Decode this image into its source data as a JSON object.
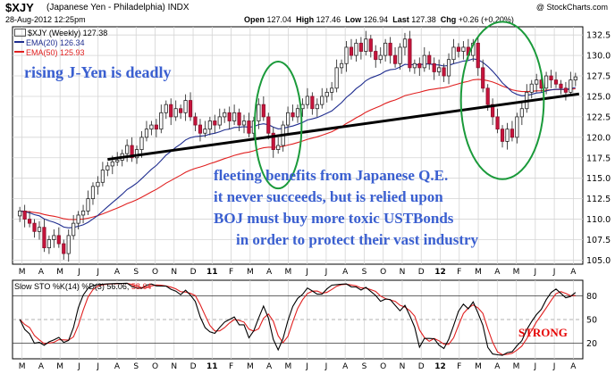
{
  "header": {
    "symbol": "$XJY",
    "name": "(Japanese Yen - Philadelphia)",
    "exchange": "INDX",
    "copyright": "@ StockCharts.com",
    "date": "28-Aug-2012 12:25pm",
    "open_label": "Open",
    "open": "127.04",
    "high_label": "High",
    "high": "127.46",
    "low_label": "Low",
    "low": "126.94",
    "last_label": "Last",
    "last": "127.38",
    "chg_label": "Chg",
    "chg": "+0.26 (+0.20%)"
  },
  "legend": {
    "price": "$XJY (Weekly) 127.38",
    "ema20": "EMA(20) 126.34",
    "ema50": "EMA(50) 125.93",
    "ema20_color": "#1f2d8f",
    "ema50_color": "#e02020"
  },
  "annotations": {
    "rising": "rising J-Yen is deadly",
    "lines": [
      "fleeting benefits from Japanese Q.E.",
      "it never succeeds, but is relied upon",
      "BOJ must buy more toxic USTBonds",
      "in order to protect their vast industry"
    ],
    "strong": "STRONG",
    "text_color": "#3a5fd0",
    "strong_color": "#e60000",
    "ellipse_color": "#1a9a3a",
    "trendline_color": "#000000"
  },
  "stoch_label": {
    "title": "Slow STO %K(14) %D(3) 56.06,",
    "d_value": "58.64",
    "k_color": "#000000",
    "d_color": "#e02020"
  },
  "chart_data": [
    {
      "type": "candlestick",
      "title": "$XJY (Weekly)",
      "ylim": [
        104.5,
        133.5
      ],
      "y_ticks": [
        105.0,
        107.5,
        110.0,
        112.5,
        115.0,
        117.5,
        120.0,
        122.5,
        125.0,
        127.5,
        130.0,
        132.5
      ],
      "x_month_labels": [
        "M",
        "A",
        "M",
        "J",
        "J",
        "A",
        "S",
        "O",
        "N",
        "D",
        "11",
        "F",
        "M",
        "A",
        "M",
        "J",
        "J",
        "A",
        "S",
        "O",
        "N",
        "D",
        "12",
        "F",
        "M",
        "A",
        "M",
        "J",
        "J",
        "A"
      ],
      "close": [
        111.0,
        110.0,
        109.5,
        108.5,
        109.0,
        106.5,
        107.5,
        108.0,
        107.0,
        105.8,
        108.0,
        109.5,
        110.5,
        111.0,
        112.5,
        114.0,
        114.5,
        116.0,
        116.5,
        117.0,
        117.2,
        118.0,
        119.0,
        117.5,
        118.5,
        120.0,
        121.0,
        121.5,
        121.0,
        123.0,
        124.0,
        122.5,
        123.5,
        123.0,
        124.5,
        122.5,
        121.5,
        120.5,
        121.0,
        122.0,
        121.5,
        122.5,
        123.0,
        122.0,
        123.0,
        121.5,
        122.0,
        120.5,
        122.0,
        124.0,
        122.5,
        120.5,
        118.5,
        119.0,
        121.5,
        123.0,
        122.5,
        123.5,
        124.0,
        125.0,
        123.5,
        124.0,
        125.0,
        125.5,
        126.0,
        128.5,
        129.0,
        131.0,
        130.0,
        131.5,
        130.5,
        132.0,
        130.5,
        129.5,
        130.0,
        131.5,
        130.0,
        129.0,
        131.0,
        132.0,
        128.5,
        129.0,
        128.5,
        130.0,
        129.0,
        128.0,
        128.5,
        127.5,
        129.5,
        131.0,
        130.5,
        131.0,
        130.0,
        131.5,
        128.5,
        126.0,
        124.0,
        122.5,
        121.0,
        119.5,
        121.0,
        120.0,
        122.5,
        123.5,
        125.5,
        126.5,
        127.0,
        126.0,
        127.5,
        127.0,
        126.5,
        126.0,
        125.5,
        127.0,
        127.38
      ],
      "emas": [
        {
          "name": "EMA(20)",
          "last": 126.34
        },
        {
          "name": "EMA(50)",
          "last": 125.93
        }
      ]
    },
    {
      "type": "line",
      "title": "Slow STO %K(14) %D(3)",
      "ylim": [
        0,
        100
      ],
      "y_ticks": [
        20,
        50,
        80
      ],
      "x_month_labels": [
        "M",
        "A",
        "M",
        "J",
        "J",
        "A",
        "S",
        "O",
        "N",
        "D",
        "11",
        "F",
        "M",
        "A",
        "M",
        "J",
        "J",
        "A",
        "S",
        "O",
        "N",
        "D",
        "12",
        "F",
        "M",
        "A",
        "M",
        "J",
        "J",
        "A"
      ],
      "k_last": 56.06,
      "d_last": 58.64
    }
  ]
}
